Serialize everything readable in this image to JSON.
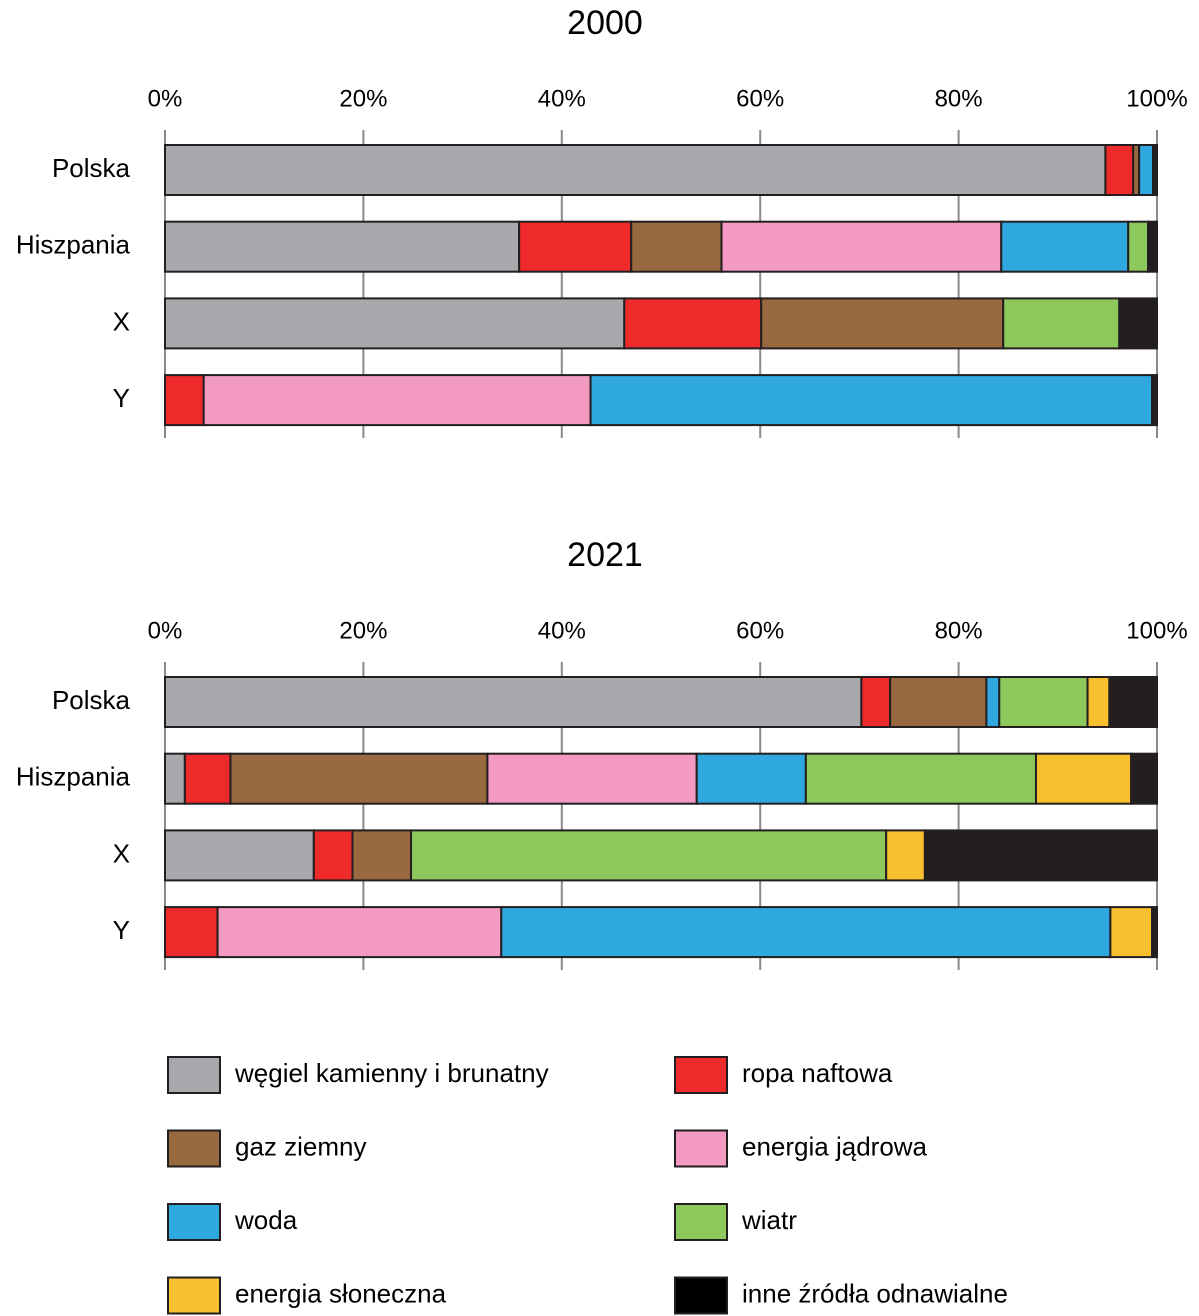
{
  "chart_data": [
    {
      "type": "stacked-bar",
      "orientation": "horizontal",
      "title": "2000",
      "categories": [
        "Polska",
        "Hiszpania",
        "X",
        "Y"
      ],
      "series": [
        {
          "name": "węgiel kamienny i brunatny",
          "color": "#a7a9ac",
          "values": [
            94.8,
            35.7,
            46.3,
            0
          ]
        },
        {
          "name": "ropa naftowa",
          "color": "#ee2a2b",
          "values": [
            2.8,
            11.3,
            13.8,
            3.9
          ]
        },
        {
          "name": "gaz ziemny",
          "color": "#98693e",
          "values": [
            0.6,
            9.1,
            24.4,
            0
          ]
        },
        {
          "name": "energia jądrowa",
          "color": "#f39ac3",
          "values": [
            0,
            28.2,
            0,
            39.0
          ]
        },
        {
          "name": "woda",
          "color": "#2ea8df",
          "values": [
            1.4,
            12.8,
            0,
            56.6
          ]
        },
        {
          "name": "wiatr",
          "color": "#8dc85c",
          "values": [
            0,
            2.0,
            11.7,
            0
          ]
        },
        {
          "name": "energia słoneczna",
          "color": "#f8bf2e",
          "values": [
            0,
            0,
            0,
            0
          ]
        },
        {
          "name": "inne źródła odnawialne",
          "color": "#231f20",
          "values": [
            0.4,
            0.9,
            3.8,
            0.5
          ]
        }
      ],
      "xlim": [
        0,
        100
      ],
      "xticks": [
        {
          "value": 0,
          "label": "0%"
        },
        {
          "value": 20,
          "label": "20%"
        },
        {
          "value": 40,
          "label": "40%"
        },
        {
          "value": 60,
          "label": "60%"
        },
        {
          "value": 80,
          "label": "80%"
        },
        {
          "value": 100,
          "label": "100%"
        }
      ],
      "grid": true
    },
    {
      "type": "stacked-bar",
      "orientation": "horizontal",
      "title": "2021",
      "categories": [
        "Polska",
        "Hiszpania",
        "X",
        "Y"
      ],
      "series": [
        {
          "values": [
            70.2,
            2.0,
            15.0,
            0
          ]
        },
        {
          "values": [
            2.9,
            4.6,
            3.9,
            5.3
          ]
        },
        {
          "values": [
            9.7,
            25.9,
            5.9,
            0
          ]
        },
        {
          "values": [
            0,
            21.1,
            0,
            28.6
          ]
        },
        {
          "values": [
            1.3,
            11.0,
            0,
            61.4
          ]
        },
        {
          "values": [
            8.9,
            23.2,
            47.9,
            0
          ]
        },
        {
          "values": [
            2.2,
            9.6,
            3.9,
            4.2
          ]
        },
        {
          "values": [
            4.8,
            2.6,
            23.4,
            0.5
          ]
        }
      ],
      "xlim": [
        0,
        100
      ],
      "xticks": [
        {
          "value": 0,
          "label": "0%"
        },
        {
          "value": 20,
          "label": "20%"
        },
        {
          "value": 40,
          "label": "40%"
        },
        {
          "value": 60,
          "label": "60%"
        },
        {
          "value": 80,
          "label": "80%"
        },
        {
          "value": 100,
          "label": "100%"
        }
      ],
      "grid": true
    }
  ]
}
